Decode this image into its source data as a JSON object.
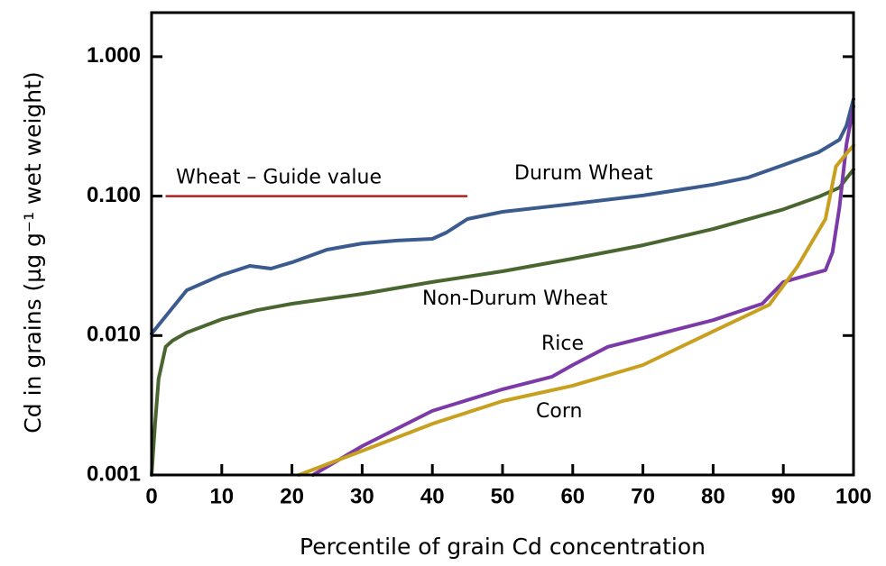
{
  "chart_data": {
    "type": "line",
    "xlabel": "Percentile of grain Cd concentration",
    "ylabel": "Cd in grains (µg g⁻¹ wet weight)",
    "ylog": true,
    "xlim": [
      0,
      100
    ],
    "xticks": [
      0,
      10,
      20,
      30,
      40,
      50,
      60,
      70,
      80,
      90,
      100
    ],
    "ylim": [
      0.001,
      2.07
    ],
    "yticks": [
      {
        "value": 0.001,
        "label": "0.001"
      },
      {
        "value": 0.01,
        "label": "0.010"
      },
      {
        "value": 0.1,
        "label": "0.100"
      },
      {
        "value": 1,
        "label": "1.000"
      }
    ],
    "guide": {
      "label": "Wheat – Guide value",
      "value": 0.1,
      "xrange": [
        2,
        45
      ],
      "color": "#b02020"
    },
    "series": [
      {
        "name": "Durum Wheat",
        "color": "#3b5b8e",
        "x": [
          0,
          5,
          10,
          14,
          17,
          20,
          25,
          30,
          35,
          40,
          42,
          45,
          50,
          60,
          70,
          80,
          85,
          90,
          95,
          98,
          99,
          100
        ],
        "values": [
          0.0103,
          0.0211,
          0.0272,
          0.0316,
          0.0302,
          0.0335,
          0.0413,
          0.0458,
          0.048,
          0.0494,
          0.0548,
          0.0685,
          0.0772,
          0.088,
          0.101,
          0.121,
          0.136,
          0.167,
          0.206,
          0.254,
          0.32,
          0.497
        ]
      },
      {
        "name": "Non-Durum Wheat",
        "color": "#4a6630",
        "x": [
          0,
          0.5,
          1,
          2,
          3,
          5,
          10,
          15,
          20,
          30,
          40,
          50,
          60,
          70,
          80,
          90,
          95,
          98,
          99,
          100
        ],
        "values": [
          0.001,
          0.00233,
          0.0049,
          0.0083,
          0.0092,
          0.0105,
          0.0131,
          0.0152,
          0.0169,
          0.0199,
          0.0242,
          0.0289,
          0.0356,
          0.0444,
          0.0581,
          0.0803,
          0.0988,
          0.115,
          0.134,
          0.155
        ]
      },
      {
        "name": "Rice",
        "color": "#7b3aa8",
        "x": [
          23,
          30,
          40,
          50,
          57,
          60,
          65,
          70,
          80,
          87,
          90,
          94,
          96,
          97,
          98,
          99,
          100
        ],
        "values": [
          0.001,
          0.00161,
          0.00288,
          0.00412,
          0.00506,
          0.00615,
          0.0083,
          0.0096,
          0.0129,
          0.0169,
          0.0242,
          0.0276,
          0.0294,
          0.0395,
          0.083,
          0.236,
          0.44
        ]
      },
      {
        "name": "Corn",
        "color": "#c8a020",
        "x": [
          21,
          30,
          40,
          50,
          60,
          70,
          80,
          88,
          92,
          96,
          97.5,
          99,
          100
        ],
        "values": [
          0.001,
          0.00149,
          0.00233,
          0.00339,
          0.00437,
          0.00615,
          0.0107,
          0.0166,
          0.0312,
          0.0685,
          0.163,
          0.202,
          0.23
        ]
      }
    ]
  }
}
